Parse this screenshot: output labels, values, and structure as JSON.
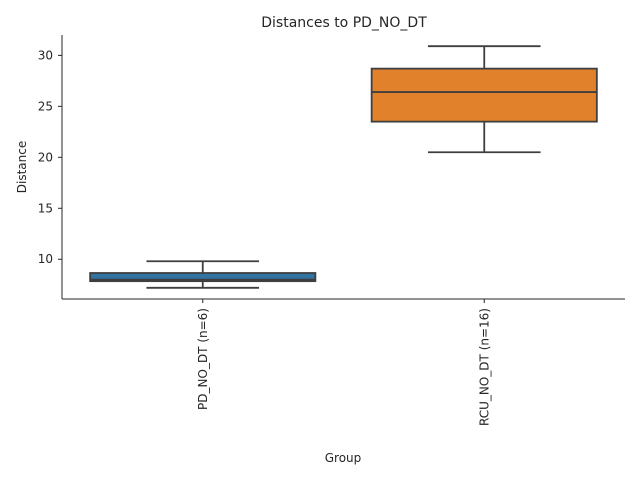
{
  "chart_data": {
    "type": "box",
    "title": "Distances to PD_NO_DT",
    "xlabel": "Group",
    "ylabel": "Distance",
    "ylim": [
      6.1,
      32.0
    ],
    "yticks": [
      10,
      15,
      20,
      25,
      30
    ],
    "grid": false,
    "categories": [
      "PD_NO_DT (n=6)",
      "RCU_NO_DT (n=16)"
    ],
    "boxes": [
      {
        "category": "PD_NO_DT (n=6)",
        "whisker_low": 7.2,
        "q1": 7.85,
        "median": 8.0,
        "q3": 8.65,
        "whisker_high": 9.8,
        "color": "#3274a1"
      },
      {
        "category": "RCU_NO_DT (n=16)",
        "whisker_low": 20.5,
        "q1": 23.5,
        "median": 26.4,
        "q3": 28.7,
        "whisker_high": 30.9,
        "color": "#e1812c"
      }
    ],
    "line_color": "#3f3f3f"
  }
}
